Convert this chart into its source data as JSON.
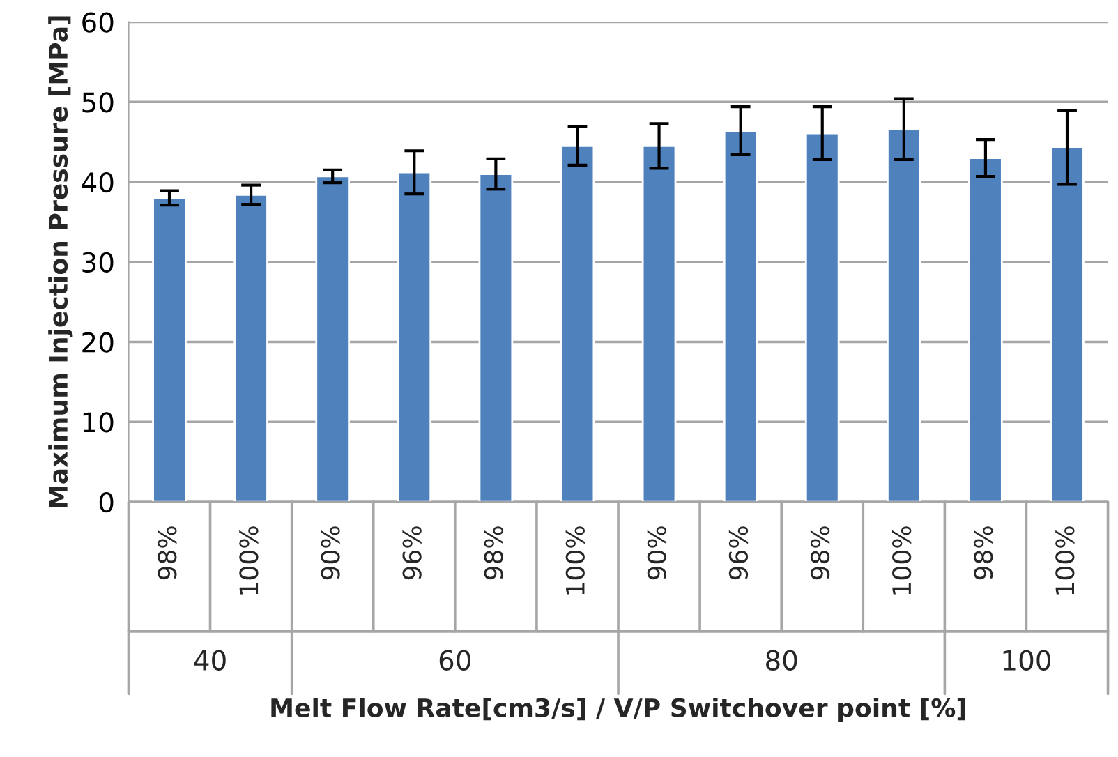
{
  "chart_data": {
    "type": "bar",
    "xlabel": "Melt Flow Rate[cm3/s] / V/P Switchover point [%]",
    "ylabel": "Maximum Injection Pressure [MPa]",
    "categories": [
      "98%",
      "100%",
      "90%",
      "96%",
      "98%",
      "100%",
      "90%",
      "96%",
      "98%",
      "100%",
      "98%",
      "100%"
    ],
    "values": [
      38.0,
      38.4,
      40.7,
      41.2,
      41.0,
      44.5,
      44.5,
      46.4,
      46.1,
      46.6,
      43.0,
      44.3
    ],
    "errors": [
      0.9,
      1.2,
      0.8,
      2.7,
      1.9,
      2.4,
      2.8,
      3.0,
      3.3,
      3.8,
      2.3,
      4.6
    ],
    "color": "#4f81bd",
    "annotations": [
      "40",
      "60",
      "80",
      "100"
    ],
    "ylim": [
      0,
      60
    ],
    "yticks": [
      0,
      10,
      20,
      30,
      40,
      50,
      60
    ],
    "grid": "y"
  }
}
